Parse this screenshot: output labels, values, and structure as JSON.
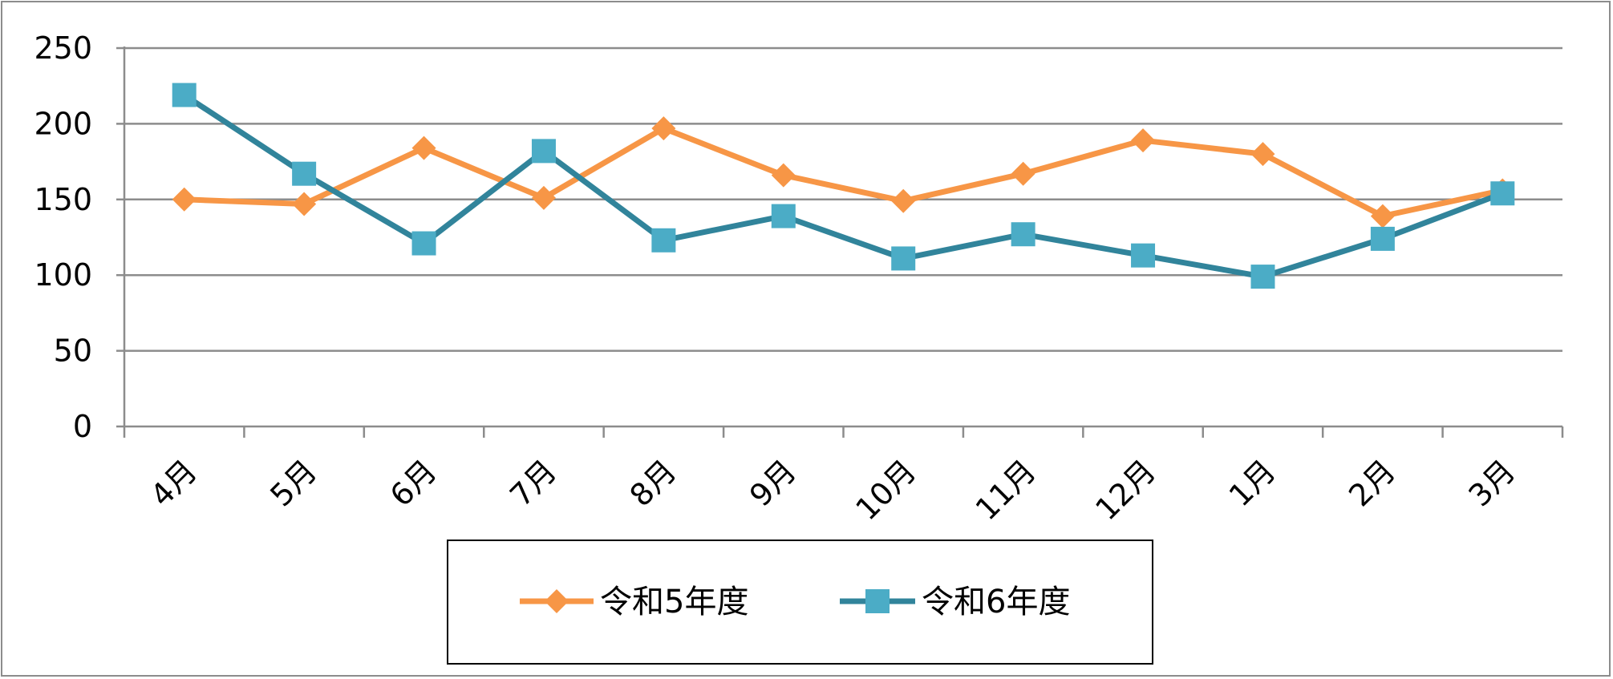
{
  "chart_data": {
    "type": "line",
    "categories": [
      "4月",
      "5月",
      "6月",
      "7月",
      "8月",
      "9月",
      "10月",
      "11月",
      "12月",
      "1月",
      "2月",
      "3月"
    ],
    "series": [
      {
        "name": "令和5年度",
        "values": [
          150,
          147,
          184,
          151,
          197,
          166,
          149,
          167,
          189,
          180,
          139,
          156
        ],
        "color": "#F79646",
        "marker": "diamond"
      },
      {
        "name": "令和6年度",
        "values": [
          219,
          167,
          121,
          182,
          123,
          139,
          111,
          127,
          113,
          99,
          124,
          154
        ],
        "color": "#31849B",
        "marker_color": "#4BACC6",
        "marker": "square"
      }
    ],
    "ylim": [
      0,
      250
    ],
    "yticks": [
      0,
      50,
      100,
      150,
      200,
      250
    ],
    "grid": true,
    "legend": "bottom",
    "title": "",
    "xlabel": "",
    "ylabel": ""
  }
}
